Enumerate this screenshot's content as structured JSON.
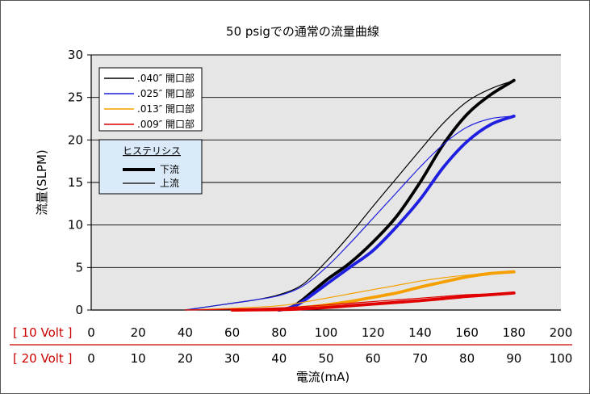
{
  "chart_data": {
    "type": "line",
    "title": "50 psigでの通常の流量曲線",
    "xlabel": "電流(mA)",
    "ylabel": "流量(SLPM)",
    "xlim": [
      0,
      200
    ],
    "ylim": [
      0,
      30
    ],
    "y_ticks": [
      "0",
      "5",
      "10",
      "15",
      "20",
      "25",
      "30"
    ],
    "grid": true,
    "x_rows": [
      {
        "label": "[ 10 Volt ]",
        "ticks": [
          "0",
          "20",
          "40",
          "60",
          "80",
          "100",
          "120",
          "140",
          "160",
          "180",
          "200"
        ]
      },
      {
        "label": "[ 20 Volt ]",
        "ticks": [
          "0",
          "10",
          "20",
          "30",
          "40",
          "50",
          "60",
          "70",
          "80",
          "90",
          "100"
        ]
      }
    ],
    "legend": {
      "placement": "top-left",
      "entries": [
        {
          "name": ".040″ 開口部",
          "color": "#000000"
        },
        {
          "name": ".025″ 開口部",
          "color": "#1f1fe0"
        },
        {
          "name": ".013″ 開口部",
          "color": "#f5a000"
        },
        {
          "name": ".009″ 開口部",
          "color": "#e00000"
        }
      ]
    },
    "hysteresis_legend": {
      "title": "ヒステリシス",
      "entries": [
        {
          "name": "下流",
          "style": "thick"
        },
        {
          "name": "上流",
          "style": "thin"
        }
      ]
    },
    "series": [
      {
        "color": "#000000",
        "style": "thick",
        "x": [
          80,
          85,
          90,
          100,
          110,
          120,
          130,
          140,
          150,
          160,
          170,
          180
        ],
        "y": [
          0,
          0.3,
          1.2,
          3.5,
          5.5,
          8.0,
          11.0,
          15.0,
          19.5,
          23.0,
          25.3,
          27.0
        ]
      },
      {
        "color": "#000000",
        "style": "thin",
        "x": [
          40,
          50,
          60,
          70,
          80,
          90,
          100,
          110,
          120,
          130,
          140,
          150,
          160,
          170,
          180
        ],
        "y": [
          0,
          0.4,
          0.8,
          1.2,
          1.8,
          3.0,
          5.7,
          8.8,
          12.2,
          15.5,
          18.8,
          22.0,
          24.5,
          26.0,
          27.0
        ]
      },
      {
        "color": "#1f1fe0",
        "style": "thick",
        "x": [
          80,
          85,
          90,
          100,
          110,
          120,
          130,
          140,
          150,
          160,
          170,
          180
        ],
        "y": [
          0,
          0.3,
          1.0,
          3.0,
          5.0,
          7.0,
          9.8,
          13.0,
          16.8,
          19.8,
          21.8,
          22.8
        ]
      },
      {
        "color": "#1f1fe0",
        "style": "thin",
        "x": [
          40,
          50,
          60,
          70,
          80,
          90,
          100,
          110,
          120,
          130,
          140,
          150,
          160,
          170,
          180
        ],
        "y": [
          0,
          0.4,
          0.8,
          1.2,
          1.7,
          2.8,
          5.0,
          7.8,
          10.8,
          13.8,
          16.8,
          19.5,
          21.5,
          22.5,
          22.8
        ]
      },
      {
        "color": "#f5a000",
        "style": "thick",
        "x": [
          60,
          80,
          90,
          100,
          110,
          120,
          130,
          140,
          150,
          160,
          170,
          180
        ],
        "y": [
          0,
          0.1,
          0.3,
          0.6,
          1.0,
          1.5,
          2.0,
          2.7,
          3.3,
          3.9,
          4.3,
          4.5
        ]
      },
      {
        "color": "#f5a000",
        "style": "thin",
        "x": [
          40,
          60,
          80,
          90,
          100,
          110,
          120,
          130,
          140,
          150,
          160,
          170,
          180
        ],
        "y": [
          0,
          0.2,
          0.5,
          0.9,
          1.4,
          1.9,
          2.4,
          2.9,
          3.4,
          3.8,
          4.1,
          4.3,
          4.5
        ]
      },
      {
        "color": "#e00000",
        "style": "thick",
        "x": [
          60,
          80,
          90,
          100,
          110,
          120,
          130,
          140,
          150,
          160,
          170,
          180
        ],
        "y": [
          0,
          0.05,
          0.15,
          0.3,
          0.5,
          0.7,
          0.9,
          1.1,
          1.35,
          1.6,
          1.8,
          2.0
        ]
      },
      {
        "color": "#e00000",
        "style": "thin",
        "x": [
          40,
          60,
          80,
          90,
          100,
          110,
          120,
          130,
          140,
          150,
          160,
          170,
          180
        ],
        "y": [
          0,
          0.1,
          0.25,
          0.4,
          0.6,
          0.8,
          1.0,
          1.2,
          1.4,
          1.6,
          1.8,
          1.9,
          2.0
        ]
      }
    ]
  }
}
